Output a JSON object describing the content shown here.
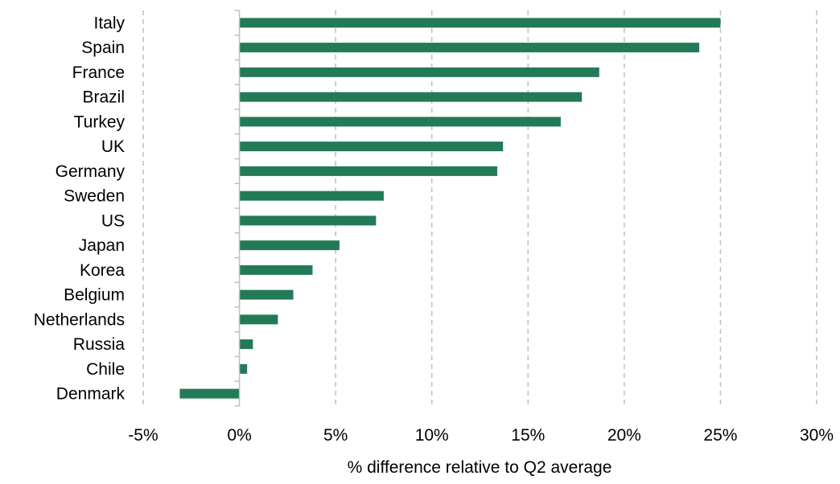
{
  "chart_data": {
    "type": "bar",
    "orientation": "horizontal",
    "categories": [
      "Italy",
      "Spain",
      "France",
      "Brazil",
      "Turkey",
      "UK",
      "Germany",
      "Sweden",
      "US",
      "Japan",
      "Korea",
      "Belgium",
      "Netherlands",
      "Russia",
      "Chile",
      "Denmark"
    ],
    "values": [
      25.0,
      23.9,
      18.7,
      17.8,
      16.7,
      13.7,
      13.4,
      7.5,
      7.1,
      5.2,
      3.8,
      2.8,
      2.0,
      0.7,
      0.4,
      -3.1
    ],
    "bar_color": "#237a57",
    "xlim": [
      -5,
      30
    ],
    "xticks": [
      -5,
      0,
      5,
      10,
      15,
      20,
      25,
      30
    ],
    "xtick_labels": [
      "-5%",
      "0%",
      "5%",
      "10%",
      "15%",
      "20%",
      "25%",
      "30%"
    ],
    "xlabel": "% difference relative to Q2 average",
    "ylabel": "",
    "title": "",
    "grid": "vertical dashed",
    "legend": "none"
  }
}
